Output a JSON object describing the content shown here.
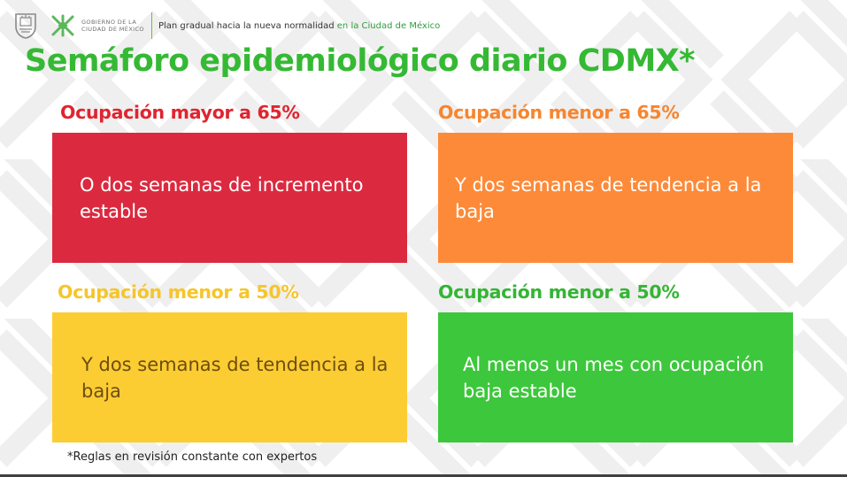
{
  "header": {
    "seal_icon": "cdmx-coat-of-arms-icon",
    "logo_icon": "cdmx-government-logo-icon",
    "gov_line1": "GOBIERNO DE LA",
    "gov_line2": "CIUDAD DE MÉXICO",
    "plan_text": "Plan gradual hacia la nueva normalidad ",
    "plan_highlight": "en la Ciudad de México"
  },
  "title": "Semáforo epidemiológico diario CDMX*",
  "quadrants": [
    {
      "label": "Ocupación mayor a 65%",
      "text": "O dos semanas de incremento estable",
      "color": "#db2a3f",
      "label_color": "#e0242f"
    },
    {
      "label": "Ocupación menor a 65%",
      "text": "Y dos semanas de tendencia a la baja",
      "color": "#fd8a38",
      "label_color": "#f7852f"
    },
    {
      "label": "Ocupación menor a 50%",
      "text": "Y dos semanas de tendencia a la baja",
      "color": "#fccc33",
      "label_color": "#f6c52b"
    },
    {
      "label": "Ocupación menor a 50%",
      "text": "Al menos un mes con ocupación baja estable",
      "color": "#3dc73c",
      "label_color": "#34b534"
    }
  ],
  "footnote": "*Reglas en revisión constante con expertos"
}
